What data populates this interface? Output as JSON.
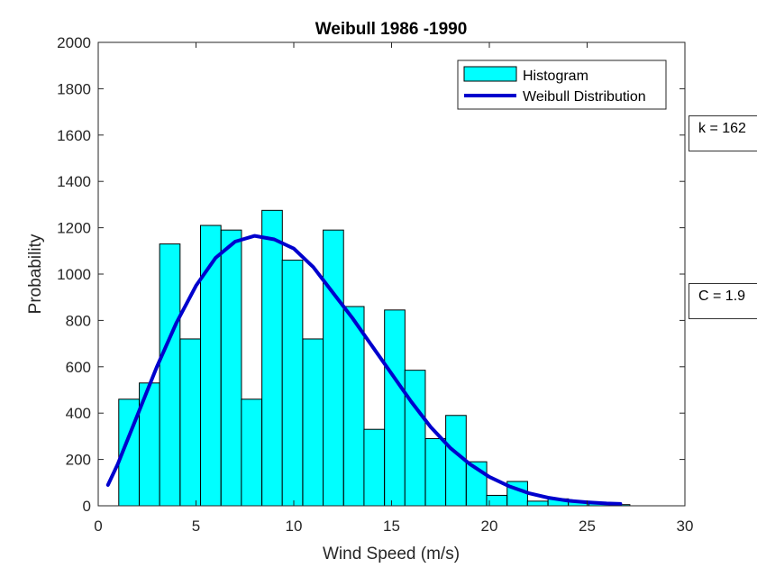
{
  "chart_data": {
    "type": "bar",
    "title": "Weibull 1986 -1990",
    "xlabel": "Wind Speed (m/s)",
    "ylabel": "Probability",
    "xlim": [
      0,
      30
    ],
    "ylim": [
      0,
      2000
    ],
    "xticks": [
      0,
      5,
      10,
      15,
      20,
      25,
      30
    ],
    "yticks": [
      0,
      200,
      400,
      600,
      800,
      1000,
      1200,
      1400,
      1600,
      1800,
      2000
    ],
    "grid": false,
    "legend_position": "top-right",
    "bin_width": 1.045,
    "histogram": {
      "name": "Histogram",
      "color": "#00FFFF",
      "bin_left_edges": [
        1.05,
        2.1,
        3.14,
        4.19,
        5.23,
        6.28,
        7.32,
        8.37,
        9.41,
        10.46,
        11.5,
        12.55,
        13.59,
        14.64,
        15.68,
        16.73,
        17.77,
        18.82,
        19.86,
        20.91,
        21.95,
        23.0,
        24.04,
        25.09,
        26.14
      ],
      "values": [
        460,
        530,
        1130,
        720,
        1210,
        1190,
        460,
        1275,
        1060,
        720,
        1190,
        860,
        330,
        845,
        585,
        290,
        390,
        190,
        45,
        105,
        20,
        30,
        20,
        15,
        5
      ]
    },
    "weibull_curve": {
      "name": "Weibull Distribution",
      "color": "#0000CD",
      "x": [
        0.5,
        1,
        2,
        3,
        4,
        5,
        6,
        7,
        8,
        9,
        10,
        11,
        12,
        13,
        14,
        15,
        16,
        17,
        18,
        19,
        20,
        21,
        22,
        23,
        24,
        25,
        26,
        26.7
      ],
      "y": [
        90,
        180,
        390,
        600,
        790,
        950,
        1070,
        1140,
        1165,
        1150,
        1110,
        1030,
        920,
        810,
        690,
        570,
        450,
        340,
        250,
        180,
        125,
        85,
        55,
        35,
        22,
        15,
        10,
        8
      ]
    },
    "annotations": {
      "k": "k = 162",
      "c": "C = 1.9"
    }
  }
}
